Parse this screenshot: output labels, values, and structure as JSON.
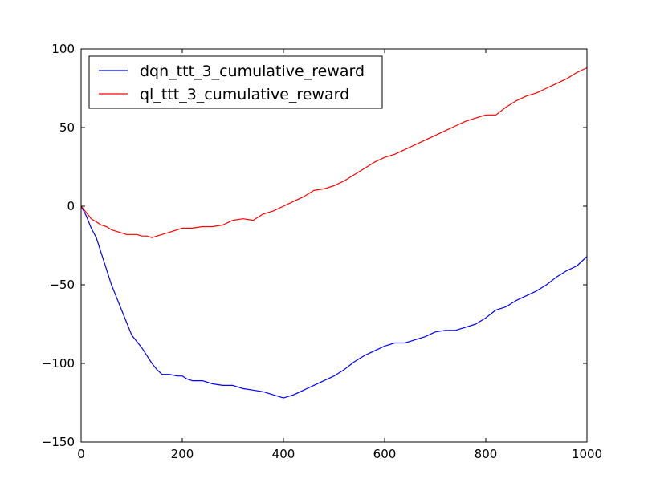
{
  "chart_data": {
    "type": "line",
    "title": "",
    "xlabel": "",
    "ylabel": "",
    "xlim": [
      0,
      1000
    ],
    "ylim": [
      -150,
      100
    ],
    "xticks": [
      0,
      200,
      400,
      600,
      800,
      1000
    ],
    "xtick_labels": [
      "0",
      "200",
      "400",
      "600",
      "800",
      "1000"
    ],
    "yticks": [
      100,
      50,
      0,
      -50,
      -100,
      -150
    ],
    "ytick_labels": [
      "100",
      "50",
      "0",
      "−50",
      "−100",
      "−150"
    ],
    "grid": false,
    "legend_position": "top-left",
    "series": [
      {
        "name": "dqn_ttt_3_cumulative_reward",
        "color": "#0000ff",
        "x": [
          0,
          10,
          20,
          30,
          40,
          50,
          60,
          70,
          80,
          90,
          100,
          110,
          120,
          130,
          140,
          150,
          160,
          175,
          190,
          200,
          210,
          220,
          240,
          260,
          280,
          300,
          320,
          340,
          360,
          380,
          400,
          420,
          440,
          460,
          480,
          500,
          520,
          540,
          560,
          580,
          600,
          620,
          640,
          660,
          680,
          700,
          720,
          740,
          760,
          780,
          800,
          820,
          840,
          860,
          880,
          900,
          920,
          940,
          960,
          980,
          1000
        ],
        "y": [
          0,
          -6,
          -14,
          -20,
          -30,
          -40,
          -50,
          -58,
          -66,
          -74,
          -82,
          -86,
          -90,
          -95,
          -100,
          -104,
          -107,
          -107,
          -108,
          -108,
          -110,
          -111,
          -111,
          -113,
          -114,
          -114,
          -116,
          -117,
          -118,
          -120,
          -122,
          -120,
          -117,
          -114,
          -111,
          -108,
          -104,
          -99,
          -95,
          -92,
          -89,
          -87,
          -87,
          -85,
          -83,
          -80,
          -79,
          -79,
          -77,
          -75,
          -71,
          -66,
          -64,
          -60,
          -57,
          -54,
          -50,
          -45,
          -41,
          -38,
          -32
        ]
      },
      {
        "name": "ql_ttt_3_cumulative_reward",
        "color": "#ff0000",
        "x": [
          0,
          10,
          20,
          30,
          40,
          50,
          60,
          70,
          80,
          90,
          100,
          110,
          120,
          130,
          140,
          150,
          160,
          180,
          200,
          220,
          240,
          260,
          280,
          300,
          320,
          340,
          360,
          380,
          400,
          420,
          440,
          460,
          480,
          500,
          520,
          540,
          560,
          580,
          600,
          620,
          640,
          660,
          680,
          700,
          720,
          740,
          760,
          780,
          800,
          820,
          840,
          860,
          880,
          900,
          920,
          940,
          960,
          980,
          1000
        ],
        "y": [
          0,
          -4,
          -8,
          -10,
          -12,
          -13,
          -15,
          -16,
          -17,
          -18,
          -18,
          -18,
          -19,
          -19,
          -20,
          -19,
          -18,
          -16,
          -14,
          -14,
          -13,
          -13,
          -12,
          -9,
          -8,
          -9,
          -5,
          -3,
          0,
          3,
          6,
          10,
          11,
          13,
          16,
          20,
          24,
          28,
          31,
          33,
          36,
          39,
          42,
          45,
          48,
          51,
          54,
          56,
          58,
          58,
          63,
          67,
          70,
          72,
          75,
          78,
          81,
          85,
          88
        ]
      }
    ]
  }
}
